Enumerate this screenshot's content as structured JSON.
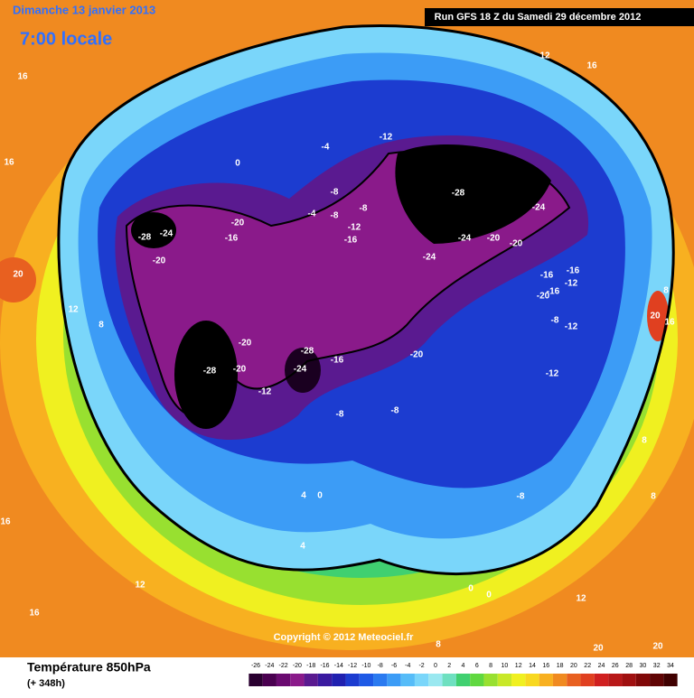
{
  "header": {
    "date": "Dimanche 13 janvier 2013",
    "time": "7:00 locale",
    "run": "Run GFS 18 Z du Samedi 29 décembre 2012"
  },
  "footer": {
    "title": "Température 850hPa",
    "lead": "(+ 348h)",
    "copyright": "Copyright © 2012 Meteociel.fr"
  },
  "scale": {
    "ticks": [
      -26,
      -24,
      -22,
      -20,
      -18,
      -16,
      -14,
      -12,
      -10,
      -8,
      -6,
      -4,
      -2,
      0,
      2,
      4,
      6,
      8,
      10,
      12,
      14,
      16,
      18,
      20,
      22,
      24,
      26,
      28,
      30,
      32,
      34
    ],
    "colors": [
      "#2a0030",
      "#4a0050",
      "#6a0a70",
      "#8a1a8a",
      "#5a1a90",
      "#3a1aa0",
      "#2020b0",
      "#1c3cd0",
      "#1e5ae6",
      "#2a7af0",
      "#3c9cf6",
      "#56bcf8",
      "#7ad6fa",
      "#9ae8f0",
      "#6ee0c0",
      "#40d070",
      "#60d840",
      "#98e030",
      "#c8e828",
      "#f0f020",
      "#f8d820",
      "#f8b020",
      "#f08a20",
      "#e86020",
      "#e04020",
      "#d02020",
      "#b81818",
      "#a01010",
      "#800808",
      "#600404",
      "#400000"
    ]
  },
  "map_labels": [
    "-4",
    "0",
    "-12",
    "-8",
    "-8",
    "-4",
    "-8",
    "-12",
    "-16",
    "-20",
    "-16",
    "-28",
    "-24",
    "-20",
    "-28",
    "-24",
    "-24",
    "-20",
    "-20",
    "-24",
    "-16",
    "-16",
    "-12",
    "-20",
    "-16",
    "-8",
    "-12",
    "-20",
    "-28",
    "-24",
    "-16",
    "-20",
    "-12",
    "-20",
    "-28",
    "-12",
    "-8",
    "-8",
    "-8",
    "4",
    "0",
    "4",
    "12",
    "16",
    "0",
    "0",
    "12",
    "8",
    "20",
    "20",
    "16",
    "8",
    "8",
    "12",
    "8",
    "20",
    "16",
    "16",
    "12",
    "16",
    "20",
    "16",
    "8"
  ]
}
